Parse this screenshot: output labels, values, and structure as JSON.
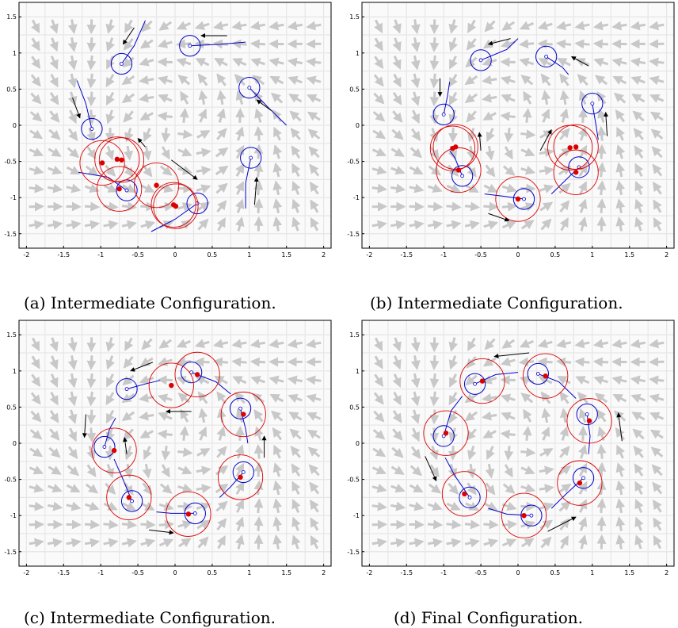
{
  "figure": {
    "captions": [
      "(a) Intermediate Configuration.",
      "(b) Intermediate Configuration.",
      "(c) Intermediate Configuration.",
      "(d) Final Configuration."
    ],
    "colors": {
      "vector_field": "#c8c8c8",
      "grid": "#e6e6e6",
      "robot": "#0000cc",
      "estimate": "#dd0000",
      "velocity_arrow": "#000000"
    }
  },
  "chart_data": [
    {
      "type": "scatter",
      "xlim": [
        -2.1,
        2.1
      ],
      "ylim": [
        -1.7,
        1.7
      ],
      "xticks": [
        -2,
        -1.5,
        -1,
        -0.5,
        0,
        0.5,
        1,
        1.5,
        2
      ],
      "yticks": [
        1.5,
        1,
        0.5,
        0,
        -0.5,
        -1,
        -1.5
      ],
      "robots": [
        {
          "x": -0.72,
          "y": 0.85,
          "trail": [
            [
              -0.72,
              0.85
            ],
            [
              -0.55,
              1.1
            ],
            [
              -0.4,
              1.45
            ]
          ]
        },
        {
          "x": 0.2,
          "y": 1.1,
          "trail": [
            [
              0.2,
              1.1
            ],
            [
              0.6,
              1.12
            ],
            [
              0.95,
              1.15
            ]
          ]
        },
        {
          "x": 1.0,
          "y": 0.52,
          "trail": [
            [
              1.0,
              0.52
            ],
            [
              1.25,
              0.25
            ],
            [
              1.5,
              0.0
            ]
          ]
        },
        {
          "x": 1.02,
          "y": -0.45,
          "trail": [
            [
              1.02,
              -0.45
            ],
            [
              0.95,
              -0.8
            ],
            [
              0.95,
              -1.15
            ]
          ]
        },
        {
          "x": 0.3,
          "y": -1.08,
          "trail": [
            [
              0.3,
              -1.08
            ],
            [
              0.0,
              -1.3
            ],
            [
              -0.32,
              -1.47
            ]
          ]
        },
        {
          "x": -0.65,
          "y": -0.9,
          "trail": [
            [
              -0.65,
              -0.9
            ],
            [
              -0.9,
              -0.72
            ],
            [
              -1.3,
              -0.65
            ]
          ]
        },
        {
          "x": -1.12,
          "y": -0.05,
          "trail": [
            [
              -1.12,
              -0.05
            ],
            [
              -1.2,
              0.3
            ],
            [
              -1.32,
              0.62
            ]
          ]
        }
      ],
      "estimates": [
        {
          "x": -0.98,
          "y": -0.52
        },
        {
          "x": -0.78,
          "y": -0.47
        },
        {
          "x": -0.72,
          "y": -0.48
        },
        {
          "x": -0.75,
          "y": -0.88
        },
        {
          "x": -0.25,
          "y": -0.83
        },
        {
          "x": -0.02,
          "y": -1.1
        },
        {
          "x": 0.01,
          "y": -1.12
        }
      ],
      "arrows": [
        {
          "from": [
            -0.55,
            1.35
          ],
          "to": [
            -0.7,
            1.12
          ]
        },
        {
          "from": [
            0.7,
            1.24
          ],
          "to": [
            0.35,
            1.24
          ]
        },
        {
          "from": [
            1.3,
            0.2
          ],
          "to": [
            1.1,
            0.35
          ]
        },
        {
          "from": [
            1.07,
            -1.1
          ],
          "to": [
            1.1,
            -0.72
          ]
        },
        {
          "from": [
            -0.05,
            -0.48
          ],
          "to": [
            0.3,
            -0.75
          ]
        },
        {
          "from": [
            -0.4,
            -0.3
          ],
          "to": [
            -0.5,
            -0.18
          ]
        },
        {
          "from": [
            -1.38,
            0.38
          ],
          "to": [
            -1.28,
            0.1
          ]
        }
      ]
    },
    {
      "type": "scatter",
      "xlim": [
        -2.1,
        2.1
      ],
      "ylim": [
        -1.7,
        1.7
      ],
      "xticks": [
        -2,
        -1.5,
        -1,
        -0.5,
        0,
        0.5,
        1,
        1.5,
        2
      ],
      "yticks": [
        1.5,
        1,
        0.5,
        0,
        -0.5,
        -1,
        -1.5
      ],
      "robots": [
        {
          "x": -0.5,
          "y": 0.9,
          "trail": [
            [
              -0.5,
              0.9
            ],
            [
              -0.15,
              1.05
            ],
            [
              0.0,
              1.2
            ]
          ]
        },
        {
          "x": 0.38,
          "y": 0.95,
          "trail": [
            [
              0.38,
              0.95
            ],
            [
              0.6,
              0.8
            ],
            [
              0.68,
              0.7
            ]
          ]
        },
        {
          "x": 1.0,
          "y": 0.3,
          "trail": [
            [
              1.0,
              0.3
            ],
            [
              1.05,
              0.0
            ],
            [
              1.08,
              -0.2
            ]
          ]
        },
        {
          "x": 0.82,
          "y": -0.58,
          "trail": [
            [
              0.82,
              -0.58
            ],
            [
              0.6,
              -0.8
            ],
            [
              0.45,
              -0.95
            ]
          ]
        },
        {
          "x": 0.08,
          "y": -1.02,
          "trail": [
            [
              0.08,
              -1.02
            ],
            [
              -0.2,
              -0.98
            ],
            [
              -0.45,
              -0.95
            ]
          ]
        },
        {
          "x": -0.75,
          "y": -0.7,
          "trail": [
            [
              -0.75,
              -0.7
            ],
            [
              -0.85,
              -0.45
            ],
            [
              -0.92,
              -0.35
            ]
          ]
        },
        {
          "x": -1.0,
          "y": 0.15,
          "trail": [
            [
              -1.0,
              0.15
            ],
            [
              -0.95,
              0.4
            ],
            [
              -0.92,
              0.6
            ]
          ]
        }
      ],
      "estimates": [
        {
          "x": -0.88,
          "y": -0.32
        },
        {
          "x": -0.84,
          "y": -0.3
        },
        {
          "x": -0.8,
          "y": -0.62
        },
        {
          "x": 0.7,
          "y": -0.31
        },
        {
          "x": 0.78,
          "y": -0.3
        },
        {
          "x": 0.78,
          "y": -0.65
        },
        {
          "x": 0.0,
          "y": -1.02
        }
      ],
      "arrows": [
        {
          "from": [
            -0.1,
            1.2
          ],
          "to": [
            -0.4,
            1.12
          ]
        },
        {
          "from": [
            0.95,
            0.82
          ],
          "to": [
            0.72,
            0.95
          ]
        },
        {
          "from": [
            1.2,
            -0.15
          ],
          "to": [
            1.18,
            0.18
          ]
        },
        {
          "from": [
            -0.4,
            -1.22
          ],
          "to": [
            -0.12,
            -1.32
          ]
        },
        {
          "from": [
            -1.05,
            0.65
          ],
          "to": [
            -1.05,
            0.4
          ]
        },
        {
          "from": [
            -0.5,
            -0.35
          ],
          "to": [
            -0.52,
            -0.1
          ]
        },
        {
          "from": [
            0.3,
            -0.35
          ],
          "to": [
            0.45,
            -0.06
          ]
        }
      ]
    },
    {
      "type": "scatter",
      "xlim": [
        -2.1,
        2.1
      ],
      "ylim": [
        -1.7,
        1.7
      ],
      "xticks": [
        -2,
        -1.5,
        -1,
        -0.5,
        0,
        0.5,
        1,
        1.5,
        2
      ],
      "yticks": [
        1.5,
        1,
        0.5,
        0,
        -0.5,
        -1,
        -1.5
      ],
      "robots": [
        {
          "x": -0.65,
          "y": 0.75,
          "trail": [
            [
              -0.65,
              0.75
            ],
            [
              -0.4,
              0.82
            ],
            [
              -0.2,
              0.87
            ]
          ]
        },
        {
          "x": 0.22,
          "y": 0.98,
          "trail": [
            [
              0.22,
              0.98
            ],
            [
              0.55,
              0.85
            ],
            [
              0.75,
              0.68
            ]
          ]
        },
        {
          "x": 0.88,
          "y": 0.48,
          "trail": [
            [
              0.88,
              0.48
            ],
            [
              0.95,
              0.2
            ],
            [
              0.98,
              0.0
            ]
          ]
        },
        {
          "x": 0.92,
          "y": -0.4,
          "trail": [
            [
              0.92,
              -0.4
            ],
            [
              0.75,
              -0.6
            ],
            [
              0.6,
              -0.75
            ]
          ]
        },
        {
          "x": 0.27,
          "y": -0.97,
          "trail": [
            [
              0.27,
              -0.97
            ],
            [
              -0.05,
              -0.97
            ],
            [
              -0.25,
              -0.95
            ]
          ]
        },
        {
          "x": -0.58,
          "y": -0.8,
          "trail": [
            [
              -0.58,
              -0.8
            ],
            [
              -0.7,
              -0.5
            ],
            [
              -0.82,
              -0.22
            ]
          ]
        },
        {
          "x": -0.95,
          "y": -0.05,
          "trail": [
            [
              -0.95,
              -0.05
            ],
            [
              -0.88,
              0.2
            ],
            [
              -0.8,
              0.35
            ]
          ]
        }
      ],
      "estimates": [
        {
          "x": -0.05,
          "y": 0.8
        },
        {
          "x": 0.3,
          "y": 0.95
        },
        {
          "x": 0.92,
          "y": 0.4
        },
        {
          "x": 0.88,
          "y": -0.47
        },
        {
          "x": 0.18,
          "y": -0.98
        },
        {
          "x": -0.62,
          "y": -0.75
        },
        {
          "x": -0.82,
          "y": -0.1
        }
      ],
      "arrows": [
        {
          "from": [
            -0.3,
            1.12
          ],
          "to": [
            -0.6,
            1.0
          ]
        },
        {
          "from": [
            0.22,
            0.44
          ],
          "to": [
            -0.12,
            0.44
          ]
        },
        {
          "from": [
            1.2,
            -0.2
          ],
          "to": [
            1.2,
            0.1
          ]
        },
        {
          "from": [
            -0.35,
            -1.2
          ],
          "to": [
            -0.02,
            -1.24
          ]
        },
        {
          "from": [
            -1.2,
            0.4
          ],
          "to": [
            -1.22,
            0.08
          ]
        },
        {
          "from": [
            -0.65,
            -0.15
          ],
          "to": [
            -0.68,
            0.08
          ]
        }
      ]
    },
    {
      "type": "scatter",
      "xlim": [
        -2.1,
        2.1
      ],
      "ylim": [
        -1.7,
        1.7
      ],
      "xticks": [
        -2,
        -1.5,
        -1,
        -0.5,
        0,
        0.5,
        1,
        1.5,
        2
      ],
      "yticks": [
        1.5,
        1,
        0.5,
        0,
        -0.5,
        -1,
        -1.5
      ],
      "robots": [
        {
          "x": -0.58,
          "y": 0.82,
          "trail": [
            [
              -0.58,
              0.82
            ],
            [
              -0.3,
              0.95
            ],
            [
              0.0,
              0.98
            ]
          ]
        },
        {
          "x": 0.27,
          "y": 0.96,
          "trail": [
            [
              0.27,
              0.96
            ],
            [
              0.55,
              0.85
            ],
            [
              0.78,
              0.62
            ]
          ]
        },
        {
          "x": 0.93,
          "y": 0.4,
          "trail": [
            [
              0.93,
              0.4
            ],
            [
              0.97,
              0.1
            ],
            [
              0.95,
              -0.15
            ]
          ]
        },
        {
          "x": 0.88,
          "y": -0.48,
          "trail": [
            [
              0.88,
              -0.48
            ],
            [
              0.65,
              -0.7
            ],
            [
              0.45,
              -0.9
            ]
          ]
        },
        {
          "x": 0.18,
          "y": -1.0,
          "trail": [
            [
              0.18,
              -1.0
            ],
            [
              -0.15,
              -0.98
            ],
            [
              -0.4,
              -0.9
            ]
          ]
        },
        {
          "x": -0.65,
          "y": -0.75,
          "trail": [
            [
              -0.65,
              -0.75
            ],
            [
              -0.85,
              -0.45
            ],
            [
              -0.98,
              -0.2
            ]
          ]
        },
        {
          "x": -1.0,
          "y": 0.1,
          "trail": [
            [
              -1.0,
              0.1
            ],
            [
              -0.9,
              0.45
            ],
            [
              -0.75,
              0.65
            ]
          ]
        }
      ],
      "estimates": [
        {
          "x": -0.48,
          "y": 0.86
        },
        {
          "x": 0.37,
          "y": 0.93
        },
        {
          "x": 0.96,
          "y": 0.31
        },
        {
          "x": 0.83,
          "y": -0.55
        },
        {
          "x": 0.08,
          "y": -1.0
        },
        {
          "x": -0.72,
          "y": -0.7
        },
        {
          "x": -0.97,
          "y": 0.14
        }
      ],
      "arrows": [
        {
          "from": [
            0.15,
            1.25
          ],
          "to": [
            -0.32,
            1.2
          ]
        },
        {
          "from": [
            1.4,
            0.03
          ],
          "to": [
            1.35,
            0.42
          ]
        },
        {
          "from": [
            0.4,
            -1.22
          ],
          "to": [
            0.78,
            -1.02
          ]
        },
        {
          "from": [
            -1.25,
            -0.18
          ],
          "to": [
            -1.1,
            -0.52
          ]
        }
      ]
    }
  ]
}
